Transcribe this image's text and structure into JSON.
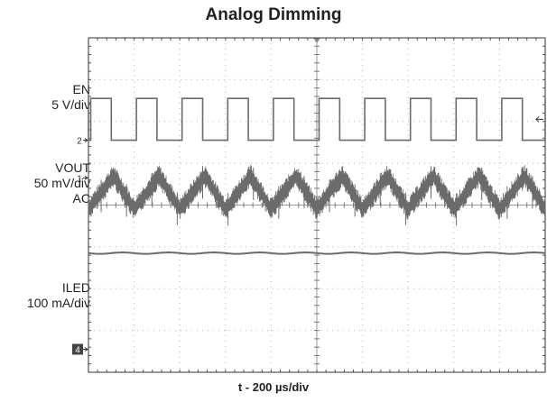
{
  "chart_data": {
    "type": "line",
    "title": "Analog Dimming",
    "xlabel": "t - 200 µs/div",
    "xlim": [
      0,
      2000
    ],
    "x_units": "µs",
    "divisions": {
      "horizontal": 10,
      "vertical": 8
    },
    "grid": true,
    "series": [
      {
        "name": "EN",
        "scale_label": "5 V/div",
        "marker": "2",
        "description": "square wave",
        "period_us": 200,
        "duty_high": 0.45,
        "low_level_div": 5.55,
        "high_level_div": 6.55
      },
      {
        "name": "VOUT",
        "scale_label": "50 mV/div",
        "coupling": "AC",
        "marker": "1",
        "description": "noisy triangular ripple",
        "period_us": 200,
        "center_div": 4.3,
        "ripple_div": 0.4
      },
      {
        "name": "ILED",
        "scale_label": "100 mA/div",
        "marker": "4",
        "description": "nearly constant DC current",
        "level_div": 2.85
      }
    ]
  }
}
